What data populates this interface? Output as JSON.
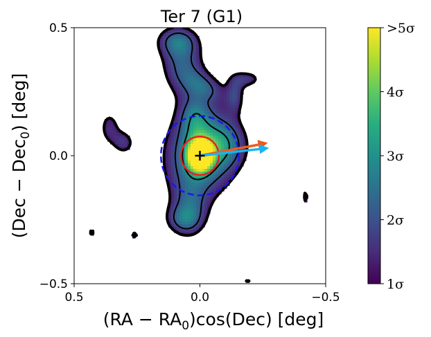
{
  "chart_data": {
    "type": "heatmap",
    "title": "Ter 7 (G1)",
    "xlabel": "(RA − RA₀)cos(Dec) [deg]",
    "xlabel_main": "(RA − RA",
    "xlabel_sub": "0",
    "xlabel_tail": ")cos(Dec) [deg]",
    "ylabel": "(Dec − Dec₀) [deg]",
    "ylabel_main": "(Dec − Dec",
    "ylabel_sub": "0",
    "ylabel_tail": ") [deg]",
    "xlim": [
      0.5,
      -0.5
    ],
    "ylim": [
      -0.5,
      0.5
    ],
    "xticks": [
      {
        "value": 0.5,
        "label": "0.5"
      },
      {
        "value": 0.0,
        "label": "0.0"
      },
      {
        "value": -0.5,
        "label": "−0.5"
      }
    ],
    "yticks": [
      {
        "value": 0.5,
        "label": "0.5"
      },
      {
        "value": 0.0,
        "label": "0.0"
      },
      {
        "value": -0.5,
        "label": "−0.5"
      }
    ],
    "colorbar": {
      "cmap": "viridis",
      "range": [
        1,
        5
      ],
      "ticks": [
        {
          "value": 1,
          "label": "1σ"
        },
        {
          "value": 2,
          "label": "2σ"
        },
        {
          "value": 3,
          "label": "3σ"
        },
        {
          "value": 4,
          "label": "4σ"
        },
        {
          "value": 5,
          "label": ">5σ"
        }
      ]
    },
    "cluster_center": [
      0.0,
      0.0
    ],
    "inner_circle": {
      "center": [
        0.0,
        0.0
      ],
      "radius": 0.075,
      "color": "#e8211f"
    },
    "outer_circle": {
      "center": [
        0.0,
        0.0
      ],
      "radius": 0.155,
      "color": "#1a1ae6"
    },
    "arrows": [
      {
        "name": "orange-arrow",
        "from": [
          0.0,
          0.0
        ],
        "to": [
          -0.27,
          0.05
        ],
        "color": "#ef5a1c"
      },
      {
        "name": "blue-arrow",
        "from": [
          0.0,
          0.0
        ],
        "to": [
          -0.275,
          0.03
        ],
        "color": "#1ab4f0"
      }
    ],
    "density_blobs": [
      {
        "name": "core",
        "x": 0.0,
        "y": 0.0,
        "sx": 0.032,
        "sy": 0.04,
        "amp": 5.2,
        "rot": 0
      },
      {
        "name": "central-envelope",
        "x": -0.01,
        "y": 0.02,
        "sx": 0.09,
        "sy": 0.12,
        "amp": 2.2,
        "rot": 15
      },
      {
        "name": "central-halo",
        "x": 0.0,
        "y": 0.0,
        "sx": 0.15,
        "sy": 0.17,
        "amp": 1.0,
        "rot": 0
      },
      {
        "name": "right-lobe",
        "x": -0.1,
        "y": 0.04,
        "sx": 0.06,
        "sy": 0.06,
        "amp": 1.2,
        "rot": 0
      },
      {
        "name": "north-ridge",
        "x": 0.07,
        "y": 0.36,
        "sx": 0.065,
        "sy": 0.09,
        "amp": 2.0,
        "rot": -10
      },
      {
        "name": "north-cap",
        "x": 0.09,
        "y": 0.45,
        "sx": 0.06,
        "sy": 0.04,
        "amp": 1.5,
        "rot": 0
      },
      {
        "name": "north-strand",
        "x": -0.02,
        "y": 0.27,
        "sx": 0.06,
        "sy": 0.035,
        "amp": 1.3,
        "rot": 25
      },
      {
        "name": "north-neck",
        "x": 0.02,
        "y": 0.15,
        "sx": 0.04,
        "sy": 0.06,
        "amp": 1.3,
        "rot": 0
      },
      {
        "name": "ne-bump",
        "x": -0.19,
        "y": 0.3,
        "sx": 0.045,
        "sy": 0.025,
        "amp": 1.4,
        "rot": 0
      },
      {
        "name": "east-bridge",
        "x": -0.14,
        "y": 0.24,
        "sx": 0.025,
        "sy": 0.05,
        "amp": 1.3,
        "rot": 0
      },
      {
        "name": "west-blob",
        "x": 0.36,
        "y": 0.11,
        "sx": 0.035,
        "sy": 0.06,
        "amp": 1.4,
        "rot": 0
      },
      {
        "name": "west-tail",
        "x": 0.3,
        "y": 0.05,
        "sx": 0.03,
        "sy": 0.035,
        "amp": 1.3,
        "rot": 0
      },
      {
        "name": "south-tail",
        "x": 0.04,
        "y": -0.21,
        "sx": 0.05,
        "sy": 0.08,
        "amp": 1.4,
        "rot": 0
      },
      {
        "name": "south-foot",
        "x": 0.07,
        "y": -0.25,
        "sx": 0.05,
        "sy": 0.04,
        "amp": 1.3,
        "rot": 0
      },
      {
        "name": "sw-islet",
        "x": 0.26,
        "y": -0.31,
        "sx": 0.02,
        "sy": 0.02,
        "amp": 1.25,
        "rot": 0
      },
      {
        "name": "west-edge-islet",
        "x": 0.43,
        "y": -0.3,
        "sx": 0.02,
        "sy": 0.03,
        "amp": 1.25,
        "rot": 0
      },
      {
        "name": "east-edge-islet",
        "x": -0.42,
        "y": -0.16,
        "sx": 0.018,
        "sy": 0.05,
        "amp": 1.25,
        "rot": 0
      },
      {
        "name": "bottom-islet",
        "x": -0.19,
        "y": -0.49,
        "sx": 0.02,
        "sy": 0.015,
        "amp": 1.25,
        "rot": 0
      }
    ],
    "contour_levels": [
      1.2,
      2.0,
      3.0
    ]
  }
}
